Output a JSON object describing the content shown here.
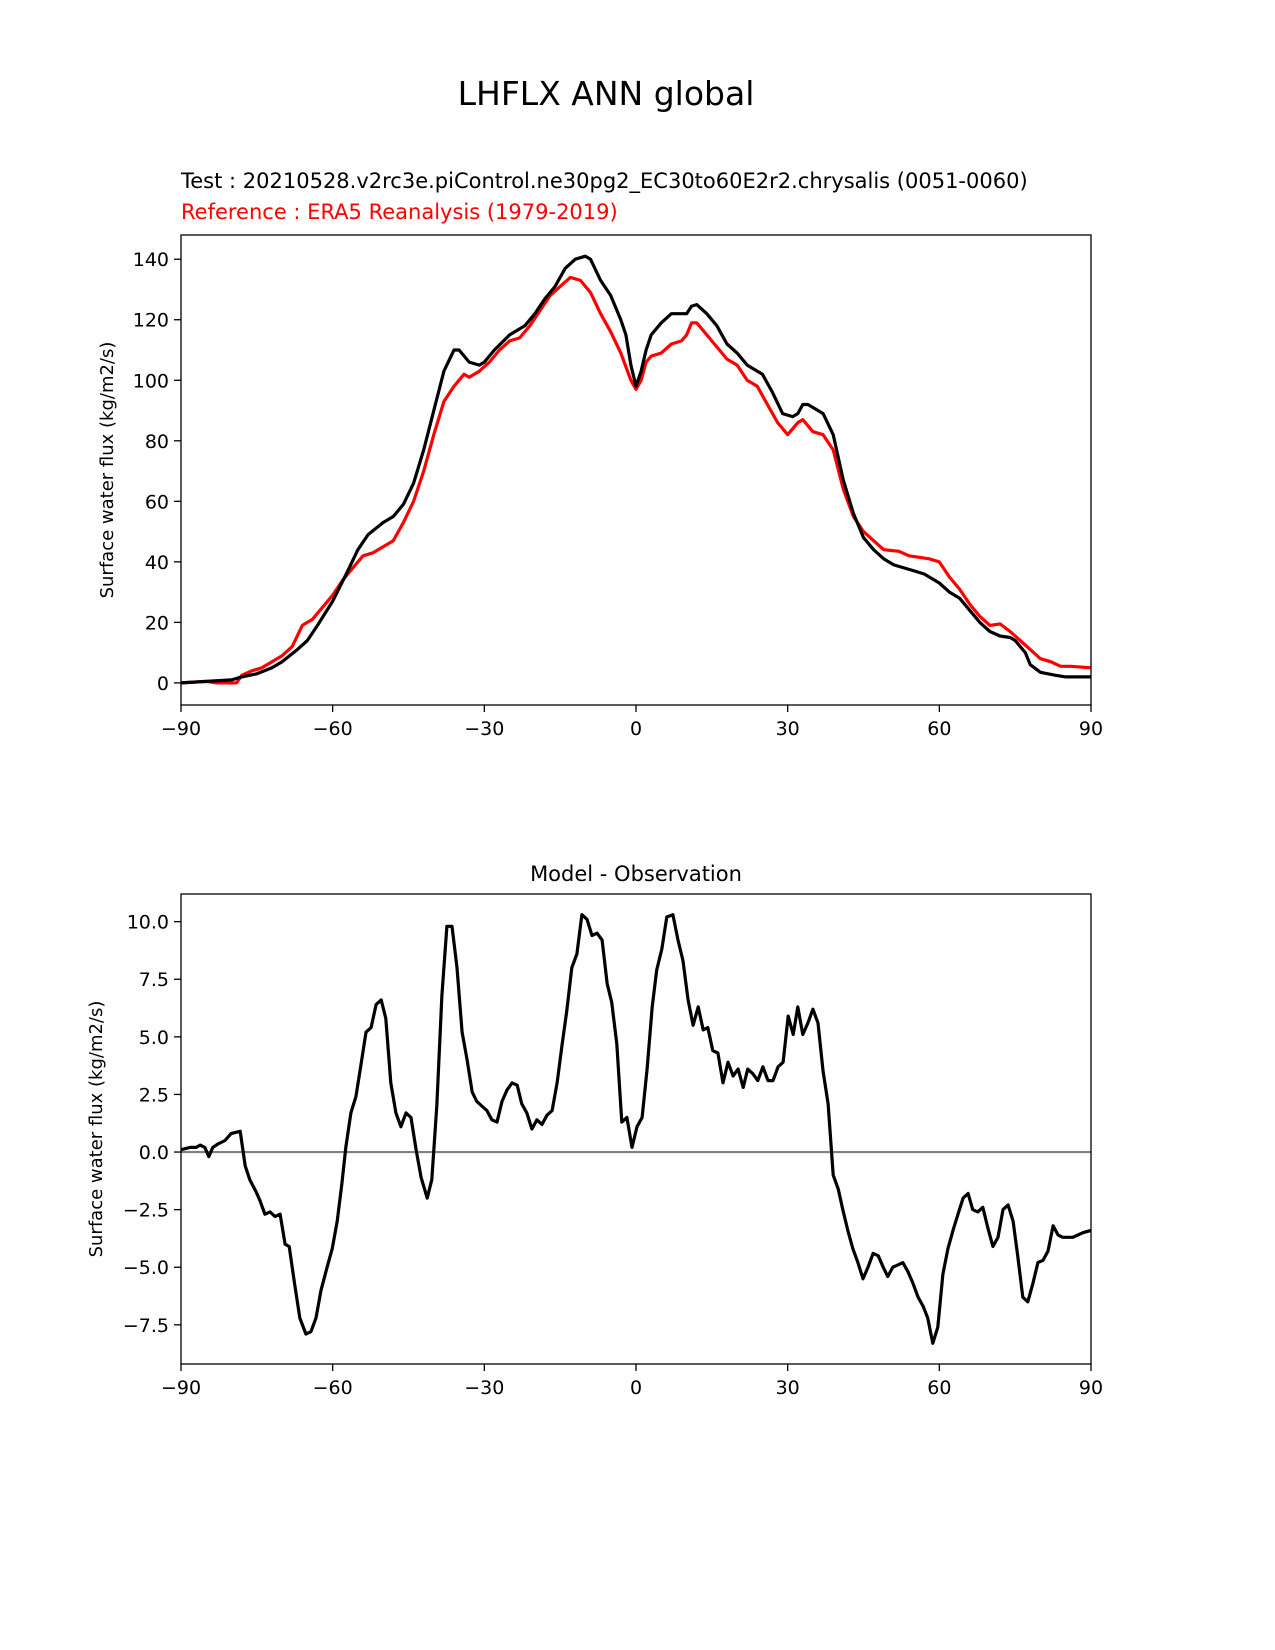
{
  "figure_title": "LHFLX ANN global",
  "chart_data": [
    {
      "type": "line",
      "test_label": "Test : 20210528.v2rc3e.piControl.ne30pg2_EC30to60E2r2.chrysalis (0051-0060)",
      "reference_label": "Reference : ERA5 Reanalysis (1979-2019)",
      "title": "",
      "xlabel": "",
      "ylabel": "Surface water flux (kg/m2/s)",
      "xlim": [
        -90,
        90
      ],
      "ylim": [
        -7.3,
        148
      ],
      "xticks": [
        -90,
        -60,
        -30,
        0,
        30,
        60,
        90
      ],
      "xtick_labels": [
        "−90",
        "−60",
        "−30",
        "0",
        "30",
        "60",
        "90"
      ],
      "yticks": [
        0,
        20,
        40,
        60,
        80,
        100,
        120,
        140
      ],
      "ytick_labels": [
        "0",
        "20",
        "40",
        "60",
        "80",
        "100",
        "120",
        "140"
      ],
      "series": [
        {
          "name": "Reference",
          "color": "#ff0000",
          "x": [
            -90,
            -85,
            -83,
            -79,
            -78,
            -76,
            -74,
            -72,
            -70,
            -68,
            -66,
            -64,
            -62,
            -60,
            -58,
            -56,
            -54,
            -52,
            -50,
            -48,
            -46,
            -44,
            -42,
            -40,
            -38,
            -36,
            -34,
            -33,
            -31,
            -29,
            -27,
            -25,
            -23,
            -21,
            -19,
            -17,
            -15,
            -13,
            -11,
            -9,
            -7,
            -5,
            -3,
            -1,
            0,
            1,
            2,
            3,
            5,
            7,
            9,
            10,
            11,
            12,
            14,
            16,
            18,
            20,
            22,
            24,
            26,
            28,
            30,
            32,
            33,
            35,
            37,
            39,
            41,
            43,
            45,
            47,
            49,
            52,
            54,
            56,
            58,
            60,
            62,
            64,
            66,
            68,
            70,
            72,
            74,
            76,
            78,
            80,
            82,
            84,
            86,
            90
          ],
          "y": [
            0,
            0.5,
            0,
            0,
            2.5,
            4,
            5,
            7,
            9,
            12,
            19,
            21,
            25,
            29,
            34,
            38,
            42,
            43,
            45,
            47,
            53,
            60,
            70,
            82,
            93,
            98,
            102,
            101,
            103,
            106,
            110,
            113,
            114,
            118,
            123,
            128,
            131,
            134,
            133,
            129,
            122,
            116,
            109,
            100,
            97,
            100,
            106,
            108,
            109,
            112,
            113,
            115,
            119,
            119,
            115,
            111,
            107,
            105,
            100,
            98,
            92,
            86,
            82,
            86,
            87,
            83,
            82,
            77,
            64,
            55,
            50,
            47,
            44,
            43.5,
            42,
            41.5,
            41,
            40,
            35,
            31,
            26,
            22,
            19,
            19.5,
            17,
            14,
            11,
            8,
            7,
            5.5,
            5.5,
            5
          ]
        },
        {
          "name": "Test",
          "color": "#000000",
          "x": [
            -90,
            -85,
            -80,
            -78,
            -75,
            -72,
            -70,
            -67,
            -65,
            -63,
            -60,
            -57,
            -55,
            -53,
            -50,
            -48,
            -46,
            -44,
            -42,
            -40,
            -38,
            -36,
            -35,
            -33,
            -31,
            -30,
            -28,
            -25,
            -22,
            -20,
            -18,
            -16,
            -14,
            -12,
            -10,
            -9,
            -7,
            -5,
            -3,
            -2,
            -1,
            0,
            1,
            2,
            3,
            5,
            7,
            9,
            10,
            11,
            12,
            14,
            16,
            18,
            20,
            22,
            25,
            27,
            29,
            31,
            32,
            33,
            34,
            36,
            37,
            39,
            41,
            43,
            45,
            47,
            49,
            51,
            53,
            55,
            57,
            60,
            62,
            64,
            66,
            68,
            70,
            72,
            74,
            75,
            77,
            78,
            80,
            83,
            85,
            90
          ],
          "y": [
            0,
            0.5,
            1,
            2,
            3,
            5,
            7,
            11,
            14,
            19,
            27,
            37,
            44,
            49,
            53,
            55,
            59,
            66,
            77,
            90,
            103,
            110,
            110,
            106,
            105,
            106,
            110,
            115,
            118,
            122,
            127,
            131,
            137,
            140,
            141,
            140,
            133,
            128,
            120,
            115,
            105,
            98,
            103,
            110,
            115,
            119,
            122,
            122,
            122,
            124.5,
            125,
            122,
            118,
            112,
            109,
            105,
            102,
            96,
            89,
            88,
            89,
            92,
            92,
            90,
            89,
            82,
            67,
            56,
            48,
            44,
            41,
            39,
            38,
            37,
            36,
            33,
            30,
            28,
            24,
            20,
            17,
            15.5,
            15,
            14,
            10,
            6,
            3.5,
            2.5,
            2,
            2
          ]
        }
      ]
    },
    {
      "type": "line",
      "title": "Model - Observation",
      "xlabel": "",
      "ylabel": "Surface water flux (kg/m2/s)",
      "xlim": [
        -90,
        90
      ],
      "ylim": [
        -9.2,
        11.2
      ],
      "xticks": [
        -90,
        -60,
        -30,
        0,
        30,
        60,
        90
      ],
      "xtick_labels": [
        "−90",
        "−60",
        "−30",
        "0",
        "30",
        "60",
        "90"
      ],
      "yticks": [
        -7.5,
        -5,
        -2.5,
        0,
        2.5,
        5,
        7.5,
        10
      ],
      "ytick_labels": [
        "−7.5",
        "−5.0",
        "−2.5",
        "0.0",
        "2.5",
        "5.0",
        "7.5",
        "10.0"
      ],
      "zero_line_color": "#808080",
      "series": [
        {
          "name": "Model - Observation",
          "color": "#000000",
          "x": [
            -90,
            -88.2,
            -87,
            -86.2,
            -85.3,
            -84.5,
            -83.7,
            -82.7,
            -81.3,
            -80.1,
            -78.3,
            -77.3,
            -76.4,
            -75.2,
            -74.4,
            -73.4,
            -72.4,
            -71.4,
            -70.4,
            -69.4,
            -68.6,
            -67.6,
            -66.5,
            -65.3,
            -64.3,
            -63.3,
            -62.3,
            -61.1,
            -60.1,
            -59.1,
            -58.2,
            -57.4,
            -56.4,
            -55.4,
            -54.4,
            -53.4,
            -52.4,
            -51.4,
            -50.4,
            -49.5,
            -48.5,
            -47.5,
            -46.5,
            -45.5,
            -44.5,
            -43.5,
            -42.5,
            -41.3,
            -40.4,
            -39.4,
            -38.4,
            -37.4,
            -36.4,
            -35.4,
            -34.4,
            -33.4,
            -32.4,
            -31.5,
            -30.5,
            -29.5,
            -28.5,
            -27.5,
            -26.5,
            -25.5,
            -24.5,
            -23.5,
            -22.6,
            -21.6,
            -20.6,
            -19.6,
            -18.6,
            -17.6,
            -16.6,
            -15.6,
            -14.6,
            -13.7,
            -12.7,
            -11.7,
            -10.7,
            -9.7,
            -8.7,
            -7.7,
            -6.7,
            -5.7,
            -4.8,
            -3.8,
            -2.8,
            -1.8,
            -0.8,
            0.2,
            1.2,
            2.2,
            3.2,
            4.1,
            5.1,
            6.1,
            7.3,
            8.3,
            9.3,
            10.3,
            11.3,
            12.3,
            13.3,
            14.2,
            15.2,
            16.2,
            17.2,
            18.2,
            19.2,
            20.2,
            21.2,
            22.1,
            23.1,
            24.1,
            25.1,
            26.1,
            27.1,
            28.1,
            29.1,
            30.1,
            31.1,
            32,
            33,
            34,
            35,
            36,
            37,
            38,
            39,
            40,
            40.9,
            41.9,
            42.9,
            43.9,
            44.9,
            45.9,
            46.9,
            47.9,
            48.9,
            49.8,
            50.8,
            51.8,
            52.8,
            53.8,
            54.8,
            55.8,
            56.8,
            57.7,
            58.7,
            59.7,
            60.7,
            61.7,
            62.7,
            63.7,
            64.7,
            65.7,
            66.6,
            67.6,
            68.6,
            69.6,
            70.6,
            71.6,
            72.6,
            73.6,
            74.6,
            75.5,
            76.5,
            77.5,
            78.5,
            79.5,
            80.5,
            81.5,
            82.5,
            83.5,
            84.4,
            85.4,
            86.4,
            87.4,
            88.4,
            90
          ],
          "y": [
            0.1,
            0.2,
            0.2,
            0.3,
            0.2,
            -0.2,
            0.2,
            0.35,
            0.5,
            0.8,
            0.9,
            -0.6,
            -1.2,
            -1.7,
            -2.1,
            -2.7,
            -2.6,
            -2.8,
            -2.7,
            -4,
            -4.1,
            -5.6,
            -7.2,
            -7.9,
            -7.8,
            -7.2,
            -6,
            -5,
            -4.2,
            -3,
            -1.4,
            0.2,
            1.7,
            2.4,
            3.8,
            5.2,
            5.4,
            6.4,
            6.6,
            5.8,
            3,
            1.7,
            1.1,
            1.7,
            1.5,
            0.1,
            -1.1,
            -2,
            -1.2,
            2,
            6.8,
            9.8,
            9.8,
            8,
            5.2,
            4,
            2.6,
            2.2,
            2,
            1.8,
            1.4,
            1.3,
            2.2,
            2.7,
            3,
            2.9,
            2.1,
            1.7,
            1,
            1.4,
            1.2,
            1.6,
            1.8,
            3,
            4.7,
            6.1,
            8,
            8.6,
            10.3,
            10.1,
            9.4,
            9.5,
            9.2,
            7.3,
            6.5,
            4.7,
            1.3,
            1.5,
            0.2,
            1.1,
            1.5,
            3.6,
            6.3,
            7.9,
            8.8,
            10.2,
            10.3,
            9.2,
            8.3,
            6.6,
            5.5,
            6.3,
            5.3,
            5.4,
            4.4,
            4.3,
            3,
            3.9,
            3.3,
            3.6,
            2.8,
            3.6,
            3.4,
            3.1,
            3.7,
            3.1,
            3.1,
            3.7,
            3.9,
            5.9,
            5.1,
            6.3,
            5.1,
            5.6,
            6.2,
            5.6,
            3.5,
            2.1,
            -1,
            -1.6,
            -2.5,
            -3.4,
            -4.2,
            -4.8,
            -5.5,
            -5,
            -4.4,
            -4.5,
            -5,
            -5.4,
            -5,
            -4.9,
            -4.8,
            -5.2,
            -5.7,
            -6.3,
            -6.7,
            -7.2,
            -8.3,
            -7.6,
            -5.3,
            -4.2,
            -3.4,
            -2.7,
            -2,
            -1.8,
            -2.5,
            -2.6,
            -2.4,
            -3.3,
            -4.1,
            -3.7,
            -2.5,
            -2.3,
            -3,
            -4.5,
            -6.3,
            -6.5,
            -5.7,
            -4.8,
            -4.7,
            -4.3,
            -3.2,
            -3.6,
            -3.7,
            -3.7,
            -3.7,
            -3.6,
            -3.5,
            -3.4
          ]
        }
      ]
    }
  ]
}
